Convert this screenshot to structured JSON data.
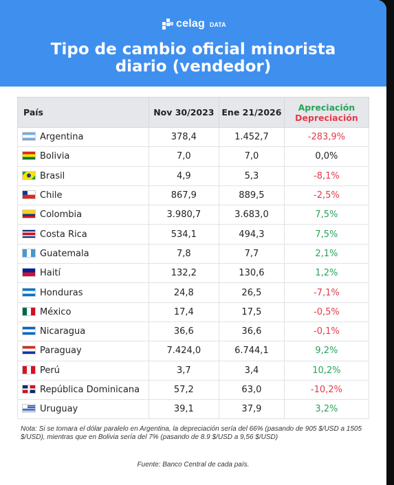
{
  "brand": {
    "name": "celag",
    "suffix": "DATA"
  },
  "title": "Tipo de cambio oficial minorista diario (vendedor)",
  "table": {
    "headers": {
      "country": "País",
      "date1": "Nov 30/2023",
      "date2": "Ene 21/2026",
      "change_ap": "Apreciación",
      "change_dep": "Depreciación"
    }
  },
  "chart_data": {
    "type": "table",
    "title": "Tipo de cambio oficial minorista diario (vendedor)",
    "columns": [
      "País",
      "Nov 30/2023",
      "Ene 21/2026",
      "Apreciación / Depreciación"
    ],
    "rows": [
      {
        "country": "Argentina",
        "flag": "argentina",
        "v1": "378,4",
        "v2": "1.452,7",
        "change": "-283,9%",
        "status": "dep"
      },
      {
        "country": "Bolivia",
        "flag": "bolivia",
        "v1": "7,0",
        "v2": "7,0",
        "change": "0,0%",
        "status": "neu"
      },
      {
        "country": "Brasil",
        "flag": "brasil",
        "v1": "4,9",
        "v2": "5,3",
        "change": "-8,1%",
        "status": "dep"
      },
      {
        "country": "Chile",
        "flag": "chile",
        "v1": "867,9",
        "v2": "889,5",
        "change": "-2,5%",
        "status": "dep"
      },
      {
        "country": "Colombia",
        "flag": "colombia",
        "v1": "3.980,7",
        "v2": "3.683,0",
        "change": "7,5%",
        "status": "ap"
      },
      {
        "country": "Costa Rica",
        "flag": "costa-rica",
        "v1": "534,1",
        "v2": "494,3",
        "change": "7,5%",
        "status": "ap"
      },
      {
        "country": "Guatemala",
        "flag": "guatemala",
        "v1": "7,8",
        "v2": "7,7",
        "change": "2,1%",
        "status": "ap"
      },
      {
        "country": "Haití",
        "flag": "haiti",
        "v1": "132,2",
        "v2": "130,6",
        "change": "1,2%",
        "status": "ap"
      },
      {
        "country": "Honduras",
        "flag": "honduras",
        "v1": "24,8",
        "v2": "26,5",
        "change": "-7,1%",
        "status": "dep"
      },
      {
        "country": "México",
        "flag": "mexico",
        "v1": "17,4",
        "v2": "17,5",
        "change": "-0,5%",
        "status": "dep"
      },
      {
        "country": "Nicaragua",
        "flag": "nicaragua",
        "v1": "36,6",
        "v2": "36,6",
        "change": "-0,1%",
        "status": "dep"
      },
      {
        "country": "Paraguay",
        "flag": "paraguay",
        "v1": "7.424,0",
        "v2": "6.744,1",
        "change": "9,2%",
        "status": "ap"
      },
      {
        "country": "Perú",
        "flag": "peru",
        "v1": "3,7",
        "v2": "3,4",
        "change": "10,2%",
        "status": "ap"
      },
      {
        "country": "República Dominicana",
        "flag": "republica-dominicana",
        "v1": "57,2",
        "v2": "63,0",
        "change": "-10,2%",
        "status": "dep"
      },
      {
        "country": "Uruguay",
        "flag": "uruguay",
        "v1": "39,1",
        "v2": "37,9",
        "change": "3,2%",
        "status": "ap"
      }
    ]
  },
  "note": "Nota: Si se tomara el dólar paralelo en Argentina, la depreciación sería del 66% (pasando de 905 $/USD a 1505 $/USD), mientras que en Bolivia sería del 7% (pasando de 8.9 $/USD a 9,56 $/USD)",
  "source": "Fuente: Banco Central de cada país.",
  "colors": {
    "header_bg": "#3f8fef",
    "appreciation": "#27a35a",
    "depreciation": "#e23a4a"
  }
}
